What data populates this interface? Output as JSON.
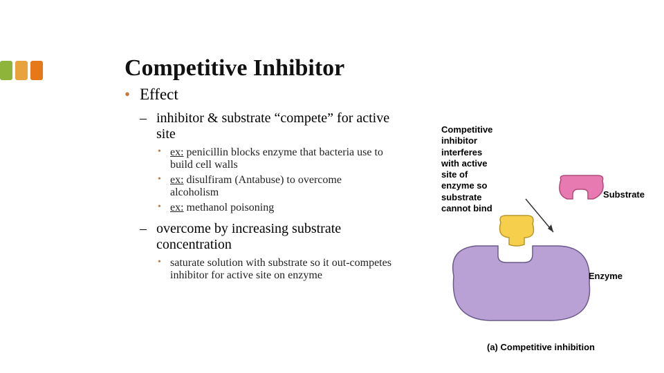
{
  "accent_colors": [
    "#8fb43a",
    "#e8a33d",
    "#e67817"
  ],
  "title": "Competitive Inhibitor",
  "bullet_color": "#c0793e",
  "lvl1": {
    "item0": "Effect"
  },
  "lvl2": {
    "item0": "inhibitor & substrate “compete” for active site",
    "item1": "overcome by increasing substrate concentration"
  },
  "lvl3a": {
    "ex": "ex:",
    "item0_rest": " penicillin blocks enzyme that bacteria use to build cell walls",
    "item1_rest": " disulfiram (Antabuse) to overcome alcoholism",
    "item2_rest": " methanol poisoning"
  },
  "lvl3b": {
    "item0": "saturate solution with substrate so it out-competes inhibitor for active site on enzyme"
  },
  "diagram": {
    "text_line1": "Competitive",
    "text_line2": "inhibitor",
    "text_line3": "interferes",
    "text_line4": "with active",
    "text_line5": "site of",
    "text_line6": "enzyme so",
    "text_line7": "substrate",
    "text_line8": "cannot bind",
    "substrate_label": "Substrate",
    "enzyme_label": "Enzyme",
    "caption": "(a) Competitive inhibition",
    "enzyme_fill": "#b9a1d6",
    "enzyme_stroke": "#6a5a8a",
    "substrate_fill": "#e77ab0",
    "substrate_stroke": "#b04a7a",
    "inhibitor_fill": "#f6d04d",
    "inhibitor_stroke": "#b8962a",
    "arrow_color": "#333333"
  }
}
